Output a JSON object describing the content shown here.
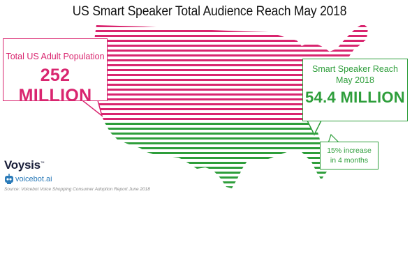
{
  "title": "US Smart Speaker Total Audience Reach May 2018",
  "left_callout": {
    "label": "Total US Adult Population",
    "value": "252 MILLION"
  },
  "right_callout": {
    "label_line1": "Smart Speaker Reach",
    "label_line2": "May 2018",
    "value": "54.4 MILLION"
  },
  "increase_callout": {
    "line1": "15% increase",
    "line2": "in 4 months"
  },
  "brands": {
    "voysis": "Voysis",
    "voysis_mark": "™",
    "voicebot": "voicebot.ai"
  },
  "source": "Source: Voicebot Voice Shopping Consumer Adoption Report June 2018",
  "colors": {
    "pink": "#d9256f",
    "green": "#2e9e3b"
  }
}
